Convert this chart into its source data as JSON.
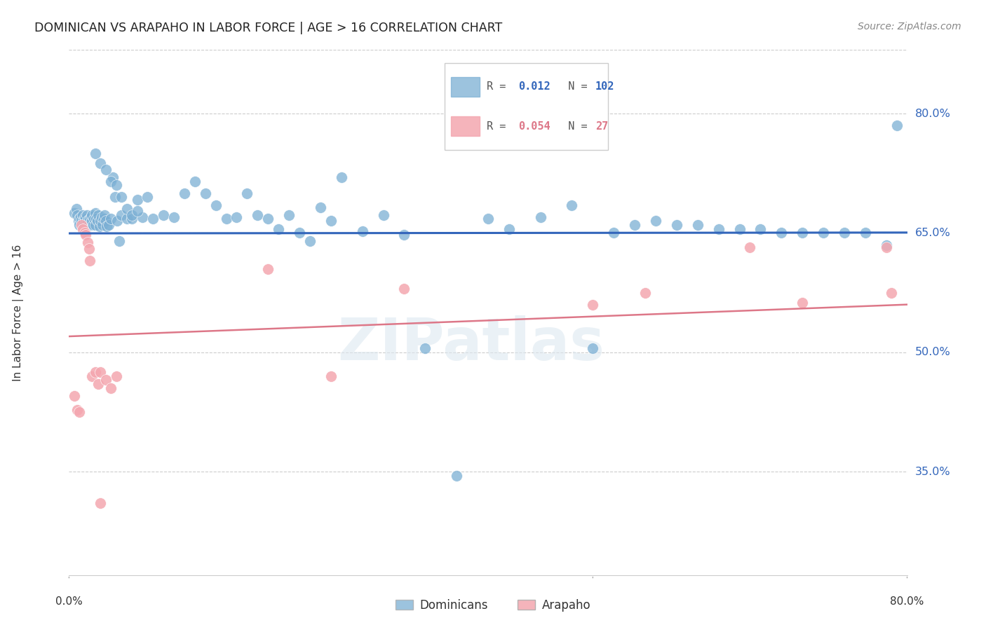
{
  "title": "DOMINICAN VS ARAPAHO IN LABOR FORCE | AGE > 16 CORRELATION CHART",
  "source": "Source: ZipAtlas.com",
  "ylabel": "In Labor Force | Age > 16",
  "xlim": [
    0.0,
    0.8
  ],
  "ylim": [
    0.22,
    0.88
  ],
  "yticks": [
    0.35,
    0.5,
    0.65,
    0.8
  ],
  "ytick_labels": [
    "35.0%",
    "50.0%",
    "65.0%",
    "80.0%"
  ],
  "background_color": "#ffffff",
  "grid_color": "#cccccc",
  "watermark": "ZIPatlas",
  "blue_color": "#7bafd4",
  "pink_color": "#f4a7b0",
  "blue_line_color": "#3366bb",
  "pink_line_color": "#dd7788",
  "r_blue": 0.012,
  "n_blue": 102,
  "r_pink": 0.054,
  "n_pink": 27,
  "legend_label_blue": "Dominicans",
  "legend_label_pink": "Arapaho",
  "blue_scatter_x": [
    0.005,
    0.007,
    0.008,
    0.009,
    0.01,
    0.01,
    0.011,
    0.012,
    0.013,
    0.013,
    0.014,
    0.015,
    0.015,
    0.016,
    0.017,
    0.018,
    0.018,
    0.019,
    0.02,
    0.021,
    0.022,
    0.022,
    0.023,
    0.024,
    0.025,
    0.025,
    0.026,
    0.027,
    0.028,
    0.029,
    0.03,
    0.031,
    0.032,
    0.033,
    0.034,
    0.035,
    0.036,
    0.038,
    0.04,
    0.042,
    0.044,
    0.046,
    0.048,
    0.05,
    0.055,
    0.06,
    0.065,
    0.07,
    0.075,
    0.08,
    0.09,
    0.1,
    0.11,
    0.12,
    0.13,
    0.14,
    0.15,
    0.16,
    0.17,
    0.18,
    0.19,
    0.2,
    0.21,
    0.22,
    0.23,
    0.24,
    0.25,
    0.26,
    0.28,
    0.3,
    0.32,
    0.34,
    0.37,
    0.4,
    0.42,
    0.45,
    0.48,
    0.5,
    0.52,
    0.54,
    0.56,
    0.58,
    0.6,
    0.62,
    0.64,
    0.66,
    0.68,
    0.7,
    0.72,
    0.74,
    0.76,
    0.78,
    0.79,
    0.025,
    0.03,
    0.035,
    0.04,
    0.045,
    0.05,
    0.055,
    0.06,
    0.065
  ],
  "blue_scatter_y": [
    0.675,
    0.68,
    0.672,
    0.665,
    0.668,
    0.66,
    0.67,
    0.665,
    0.672,
    0.658,
    0.665,
    0.67,
    0.66,
    0.668,
    0.672,
    0.665,
    0.658,
    0.66,
    0.668,
    0.67,
    0.665,
    0.672,
    0.66,
    0.668,
    0.675,
    0.66,
    0.668,
    0.665,
    0.672,
    0.658,
    0.665,
    0.67,
    0.66,
    0.668,
    0.672,
    0.665,
    0.658,
    0.66,
    0.668,
    0.72,
    0.695,
    0.665,
    0.64,
    0.672,
    0.668,
    0.668,
    0.692,
    0.67,
    0.695,
    0.668,
    0.672,
    0.67,
    0.7,
    0.715,
    0.7,
    0.685,
    0.668,
    0.67,
    0.7,
    0.672,
    0.668,
    0.655,
    0.672,
    0.65,
    0.64,
    0.682,
    0.665,
    0.72,
    0.652,
    0.672,
    0.648,
    0.505,
    0.345,
    0.668,
    0.655,
    0.67,
    0.685,
    0.505,
    0.65,
    0.66,
    0.665,
    0.66,
    0.66,
    0.655,
    0.655,
    0.655,
    0.65,
    0.65,
    0.65,
    0.65,
    0.65,
    0.635,
    0.785,
    0.75,
    0.738,
    0.73,
    0.715,
    0.71,
    0.695,
    0.68,
    0.672,
    0.678
  ],
  "pink_scatter_x": [
    0.005,
    0.008,
    0.01,
    0.012,
    0.013,
    0.015,
    0.016,
    0.018,
    0.019,
    0.02,
    0.022,
    0.025,
    0.028,
    0.03,
    0.035,
    0.04,
    0.045,
    0.19,
    0.25,
    0.32,
    0.5,
    0.55,
    0.65,
    0.7,
    0.78,
    0.785,
    0.03
  ],
  "pink_scatter_y": [
    0.445,
    0.428,
    0.425,
    0.66,
    0.655,
    0.65,
    0.648,
    0.638,
    0.63,
    0.615,
    0.47,
    0.475,
    0.46,
    0.475,
    0.465,
    0.455,
    0.47,
    0.605,
    0.47,
    0.58,
    0.56,
    0.575,
    0.632,
    0.562,
    0.632,
    0.575,
    0.31
  ],
  "blue_trend_x": [
    0.0,
    0.8
  ],
  "blue_trend_y": [
    0.6495,
    0.6505
  ],
  "pink_trend_x": [
    0.0,
    0.8
  ],
  "pink_trend_y": [
    0.52,
    0.56
  ]
}
